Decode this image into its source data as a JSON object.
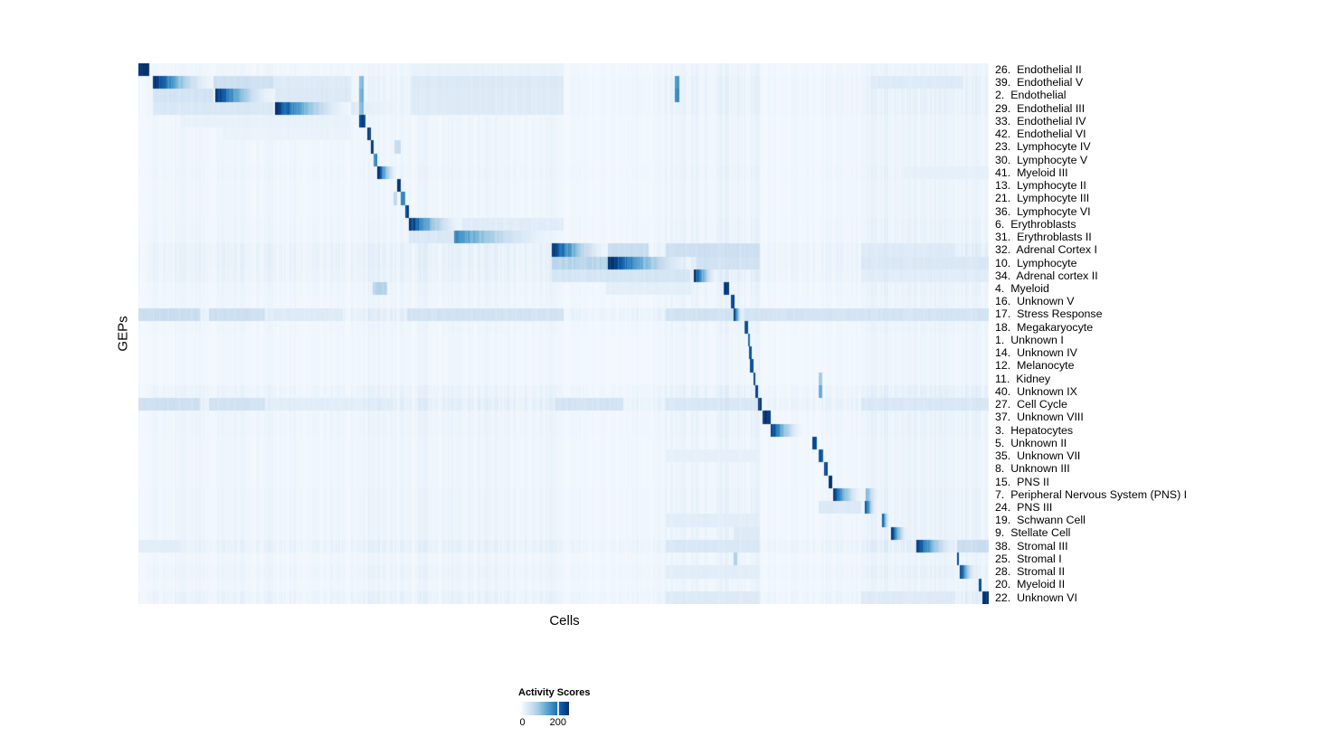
{
  "chart_data": {
    "type": "heatmap",
    "xlabel": "Cells",
    "ylabel": "GEPs",
    "legend": {
      "title": "Activity Scores",
      "ticks": [
        "0",
        "200"
      ],
      "tick0_fraction": 0.03,
      "tick200_fraction": 0.77
    },
    "palette": [
      "#f7fbff",
      "#deebf7",
      "#c6dbef",
      "#9ecae1",
      "#6baed6",
      "#4292c6",
      "#2171b5",
      "#08519c",
      "#08306b"
    ],
    "value_range": [
      0,
      260
    ],
    "column_zones": [
      [
        0.0,
        0.016,
        0.6
      ],
      [
        0.016,
        0.26,
        0.9
      ],
      [
        0.26,
        0.32,
        1.3
      ],
      [
        0.32,
        0.5,
        1.1
      ],
      [
        0.5,
        0.62,
        0.7
      ],
      [
        0.62,
        0.73,
        1.4
      ],
      [
        0.73,
        0.8,
        0.6
      ],
      [
        0.8,
        0.85,
        0.9
      ],
      [
        0.85,
        1.0,
        1.5
      ]
    ],
    "rows": [
      {
        "label": "26.  Endothelial II",
        "noise": 0.05,
        "bands": [
          [
            0.0,
            0.012,
            1.0,
            0
          ],
          [
            0.32,
            0.5,
            0.07,
            0
          ]
        ]
      },
      {
        "label": "39.  Endothelial V",
        "noise": 0.07,
        "bands": [
          [
            0.016,
            0.088,
            1.0,
            1
          ],
          [
            0.088,
            0.158,
            0.2,
            0
          ],
          [
            0.158,
            0.25,
            0.12,
            0
          ],
          [
            0.259,
            0.264,
            0.45,
            0
          ],
          [
            0.32,
            0.5,
            0.13,
            0
          ],
          [
            0.63,
            0.636,
            0.55,
            0
          ],
          [
            0.86,
            0.97,
            0.12,
            0
          ]
        ]
      },
      {
        "label": "2.  Endothelial",
        "noise": 0.07,
        "bands": [
          [
            0.09,
            0.16,
            0.95,
            1
          ],
          [
            0.016,
            0.088,
            0.17,
            0
          ],
          [
            0.16,
            0.25,
            0.13,
            0
          ],
          [
            0.259,
            0.264,
            0.5,
            0
          ],
          [
            0.32,
            0.5,
            0.12,
            0
          ],
          [
            0.63,
            0.636,
            0.6,
            0
          ]
        ]
      },
      {
        "label": "29.  Endothelial III",
        "noise": 0.07,
        "bands": [
          [
            0.16,
            0.25,
            0.95,
            1
          ],
          [
            0.016,
            0.158,
            0.14,
            0
          ],
          [
            0.25,
            0.31,
            0.1,
            1
          ],
          [
            0.259,
            0.264,
            0.45,
            0
          ],
          [
            0.32,
            0.5,
            0.12,
            0
          ]
        ]
      },
      {
        "label": "33.  Endothelial IV",
        "noise": 0.05,
        "bands": [
          [
            0.259,
            0.267,
            0.95,
            0
          ],
          [
            0.05,
            0.25,
            0.07,
            0
          ]
        ]
      },
      {
        "label": "42.  Endothelial VI",
        "noise": 0.05,
        "bands": [
          [
            0.269,
            0.2725,
            0.9,
            0
          ],
          [
            0.1,
            0.25,
            0.06,
            0
          ]
        ]
      },
      {
        "label": "23.  Lymphocyte IV",
        "noise": 0.05,
        "bands": [
          [
            0.2725,
            0.2765,
            0.9,
            0
          ],
          [
            0.301,
            0.308,
            0.22,
            0
          ]
        ]
      },
      {
        "label": "30.  Lymphocyte V",
        "noise": 0.05,
        "bands": [
          [
            0.2765,
            0.2805,
            0.65,
            0
          ]
        ]
      },
      {
        "label": "41.  Myeloid III",
        "noise": 0.06,
        "bands": [
          [
            0.2805,
            0.304,
            0.95,
            1
          ],
          [
            0.9,
            1.0,
            0.08,
            0
          ]
        ]
      },
      {
        "label": "13.  Lymphocyte II",
        "noise": 0.05,
        "bands": [
          [
            0.304,
            0.3085,
            0.9,
            0
          ]
        ]
      },
      {
        "label": "21.  Lymphocyte III",
        "noise": 0.05,
        "bands": [
          [
            0.3085,
            0.3135,
            0.6,
            0
          ],
          [
            0.3,
            0.304,
            0.25,
            0
          ]
        ]
      },
      {
        "label": "36.  Lymphocyte VI",
        "noise": 0.05,
        "bands": [
          [
            0.3135,
            0.318,
            0.9,
            0
          ]
        ]
      },
      {
        "label": "6.  Erythroblasts",
        "noise": 0.06,
        "bands": [
          [
            0.318,
            0.38,
            0.95,
            1
          ],
          [
            0.38,
            0.5,
            0.11,
            0
          ]
        ]
      },
      {
        "label": "31.  Erythroblasts II",
        "noise": 0.06,
        "bands": [
          [
            0.371,
            0.495,
            0.58,
            1
          ],
          [
            0.318,
            0.371,
            0.14,
            0
          ]
        ]
      },
      {
        "label": "32.  Adrenal Cortex I",
        "noise": 0.1,
        "bands": [
          [
            0.486,
            0.552,
            0.95,
            1
          ],
          [
            0.552,
            0.6,
            0.22,
            0
          ],
          [
            0.62,
            0.73,
            0.2,
            0
          ],
          [
            0.85,
            0.96,
            0.12,
            0
          ]
        ]
      },
      {
        "label": "10.  Lymphocyte",
        "noise": 0.1,
        "bands": [
          [
            0.552,
            0.655,
            0.98,
            1
          ],
          [
            0.486,
            0.552,
            0.28,
            0
          ],
          [
            0.655,
            0.73,
            0.18,
            0
          ],
          [
            0.85,
            1.0,
            0.14,
            0
          ]
        ]
      },
      {
        "label": "34.  Adrenal cortex II",
        "noise": 0.09,
        "bands": [
          [
            0.653,
            0.68,
            0.95,
            1
          ],
          [
            0.486,
            0.648,
            0.16,
            0
          ],
          [
            0.85,
            1.0,
            0.1,
            0
          ]
        ]
      },
      {
        "label": "4.  Myeloid",
        "noise": 0.06,
        "bands": [
          [
            0.688,
            0.694,
            0.9,
            0
          ],
          [
            0.275,
            0.292,
            0.28,
            0
          ],
          [
            0.55,
            0.65,
            0.09,
            0
          ]
        ]
      },
      {
        "label": "16.  Unknown V",
        "noise": 0.05,
        "bands": [
          [
            0.696,
            0.701,
            0.85,
            0
          ]
        ]
      },
      {
        "label": "17.  Stress Response",
        "noise": 0.12,
        "bands": [
          [
            0.7,
            0.711,
            0.9,
            1
          ],
          [
            0.0,
            0.072,
            0.22,
            0
          ],
          [
            0.082,
            0.148,
            0.2,
            0
          ],
          [
            0.158,
            0.24,
            0.12,
            0
          ],
          [
            0.315,
            0.5,
            0.18,
            0
          ],
          [
            0.62,
            0.7,
            0.18,
            0
          ],
          [
            0.711,
            1.0,
            0.17,
            0
          ]
        ]
      },
      {
        "label": "18.  Megakaryocyte",
        "noise": 0.05,
        "bands": [
          [
            0.712,
            0.7165,
            0.8,
            0
          ]
        ]
      },
      {
        "label": "1.  Unknown I",
        "noise": 0.04,
        "bands": [
          [
            0.716,
            0.7185,
            0.75,
            0
          ]
        ]
      },
      {
        "label": "14.  Unknown IV",
        "noise": 0.04,
        "bands": [
          [
            0.718,
            0.7205,
            0.85,
            0
          ]
        ]
      },
      {
        "label": "12.  Melanocyte",
        "noise": 0.04,
        "bands": [
          [
            0.719,
            0.7225,
            0.85,
            0
          ]
        ]
      },
      {
        "label": "11.  Kidney",
        "noise": 0.04,
        "bands": [
          [
            0.7225,
            0.7248,
            0.85,
            0
          ],
          [
            0.8,
            0.8035,
            0.35,
            0
          ]
        ]
      },
      {
        "label": "40.  Unknown IX",
        "noise": 0.08,
        "bands": [
          [
            0.7248,
            0.7278,
            0.85,
            0
          ],
          [
            0.8,
            0.8035,
            0.5,
            0
          ]
        ]
      },
      {
        "label": "27.  Cell Cycle",
        "noise": 0.12,
        "bands": [
          [
            0.7278,
            0.7325,
            0.9,
            0
          ],
          [
            0.0,
            0.072,
            0.2,
            0
          ],
          [
            0.082,
            0.148,
            0.18,
            0
          ],
          [
            0.158,
            0.3,
            0.1,
            0
          ],
          [
            0.49,
            0.57,
            0.17,
            0
          ],
          [
            0.62,
            0.73,
            0.14,
            0
          ],
          [
            0.85,
            1.0,
            0.14,
            0
          ]
        ]
      },
      {
        "label": "37.  Unknown VIII",
        "noise": 0.06,
        "bands": [
          [
            0.734,
            0.7435,
            0.9,
            0
          ]
        ]
      },
      {
        "label": "3.  Hepatocytes",
        "noise": 0.06,
        "bands": [
          [
            0.7435,
            0.78,
            0.95,
            1
          ]
        ]
      },
      {
        "label": "5.  Unknown II",
        "noise": 0.05,
        "bands": [
          [
            0.792,
            0.797,
            0.85,
            0
          ]
        ]
      },
      {
        "label": "35.  Unknown VII",
        "noise": 0.05,
        "bands": [
          [
            0.8,
            0.8045,
            0.85,
            0
          ],
          [
            0.62,
            0.73,
            0.08,
            0
          ]
        ]
      },
      {
        "label": "8.  Unknown III",
        "noise": 0.05,
        "bands": [
          [
            0.806,
            0.81,
            0.85,
            0
          ]
        ]
      },
      {
        "label": "15.  PNS II",
        "noise": 0.05,
        "bands": [
          [
            0.8115,
            0.8155,
            0.9,
            0
          ]
        ]
      },
      {
        "label": "7.  Peripheral Nervous System (PNS) I",
        "noise": 0.06,
        "bands": [
          [
            0.8165,
            0.85,
            0.97,
            1
          ],
          [
            0.855,
            0.872,
            0.45,
            1
          ]
        ]
      },
      {
        "label": "24.  PNS III",
        "noise": 0.06,
        "bands": [
          [
            0.854,
            0.868,
            0.92,
            1
          ],
          [
            0.8,
            0.85,
            0.13,
            0
          ]
        ]
      },
      {
        "label": "19.  Schwann Cell",
        "noise": 0.06,
        "bands": [
          [
            0.874,
            0.8835,
            0.9,
            1
          ],
          [
            0.62,
            0.73,
            0.1,
            0
          ]
        ]
      },
      {
        "label": "9.  Stellate Cell",
        "noise": 0.06,
        "bands": [
          [
            0.885,
            0.905,
            0.92,
            1
          ],
          [
            0.7,
            0.73,
            0.12,
            0
          ]
        ]
      },
      {
        "label": "38.  Stromal III",
        "noise": 0.1,
        "bands": [
          [
            0.9145,
            0.962,
            0.95,
            1
          ],
          [
            0.62,
            0.73,
            0.14,
            0
          ],
          [
            0.962,
            1.0,
            0.22,
            0
          ],
          [
            0.0,
            0.05,
            0.1,
            0
          ]
        ]
      },
      {
        "label": "25.  Stromal I",
        "noise": 0.05,
        "bands": [
          [
            0.962,
            0.9645,
            0.85,
            0
          ],
          [
            0.7,
            0.704,
            0.3,
            0
          ]
        ]
      },
      {
        "label": "28.  Stromal II",
        "noise": 0.07,
        "bands": [
          [
            0.9655,
            0.986,
            0.92,
            1
          ],
          [
            0.62,
            0.73,
            0.1,
            0
          ]
        ]
      },
      {
        "label": "20.  Myeloid II",
        "noise": 0.05,
        "bands": [
          [
            0.988,
            0.9905,
            0.8,
            0
          ]
        ]
      },
      {
        "label": "22.  Unknown VI",
        "noise": 0.09,
        "bands": [
          [
            0.9925,
            1.0,
            0.95,
            0
          ],
          [
            0.62,
            0.73,
            0.12,
            0
          ],
          [
            0.85,
            0.96,
            0.12,
            0
          ]
        ]
      }
    ]
  }
}
